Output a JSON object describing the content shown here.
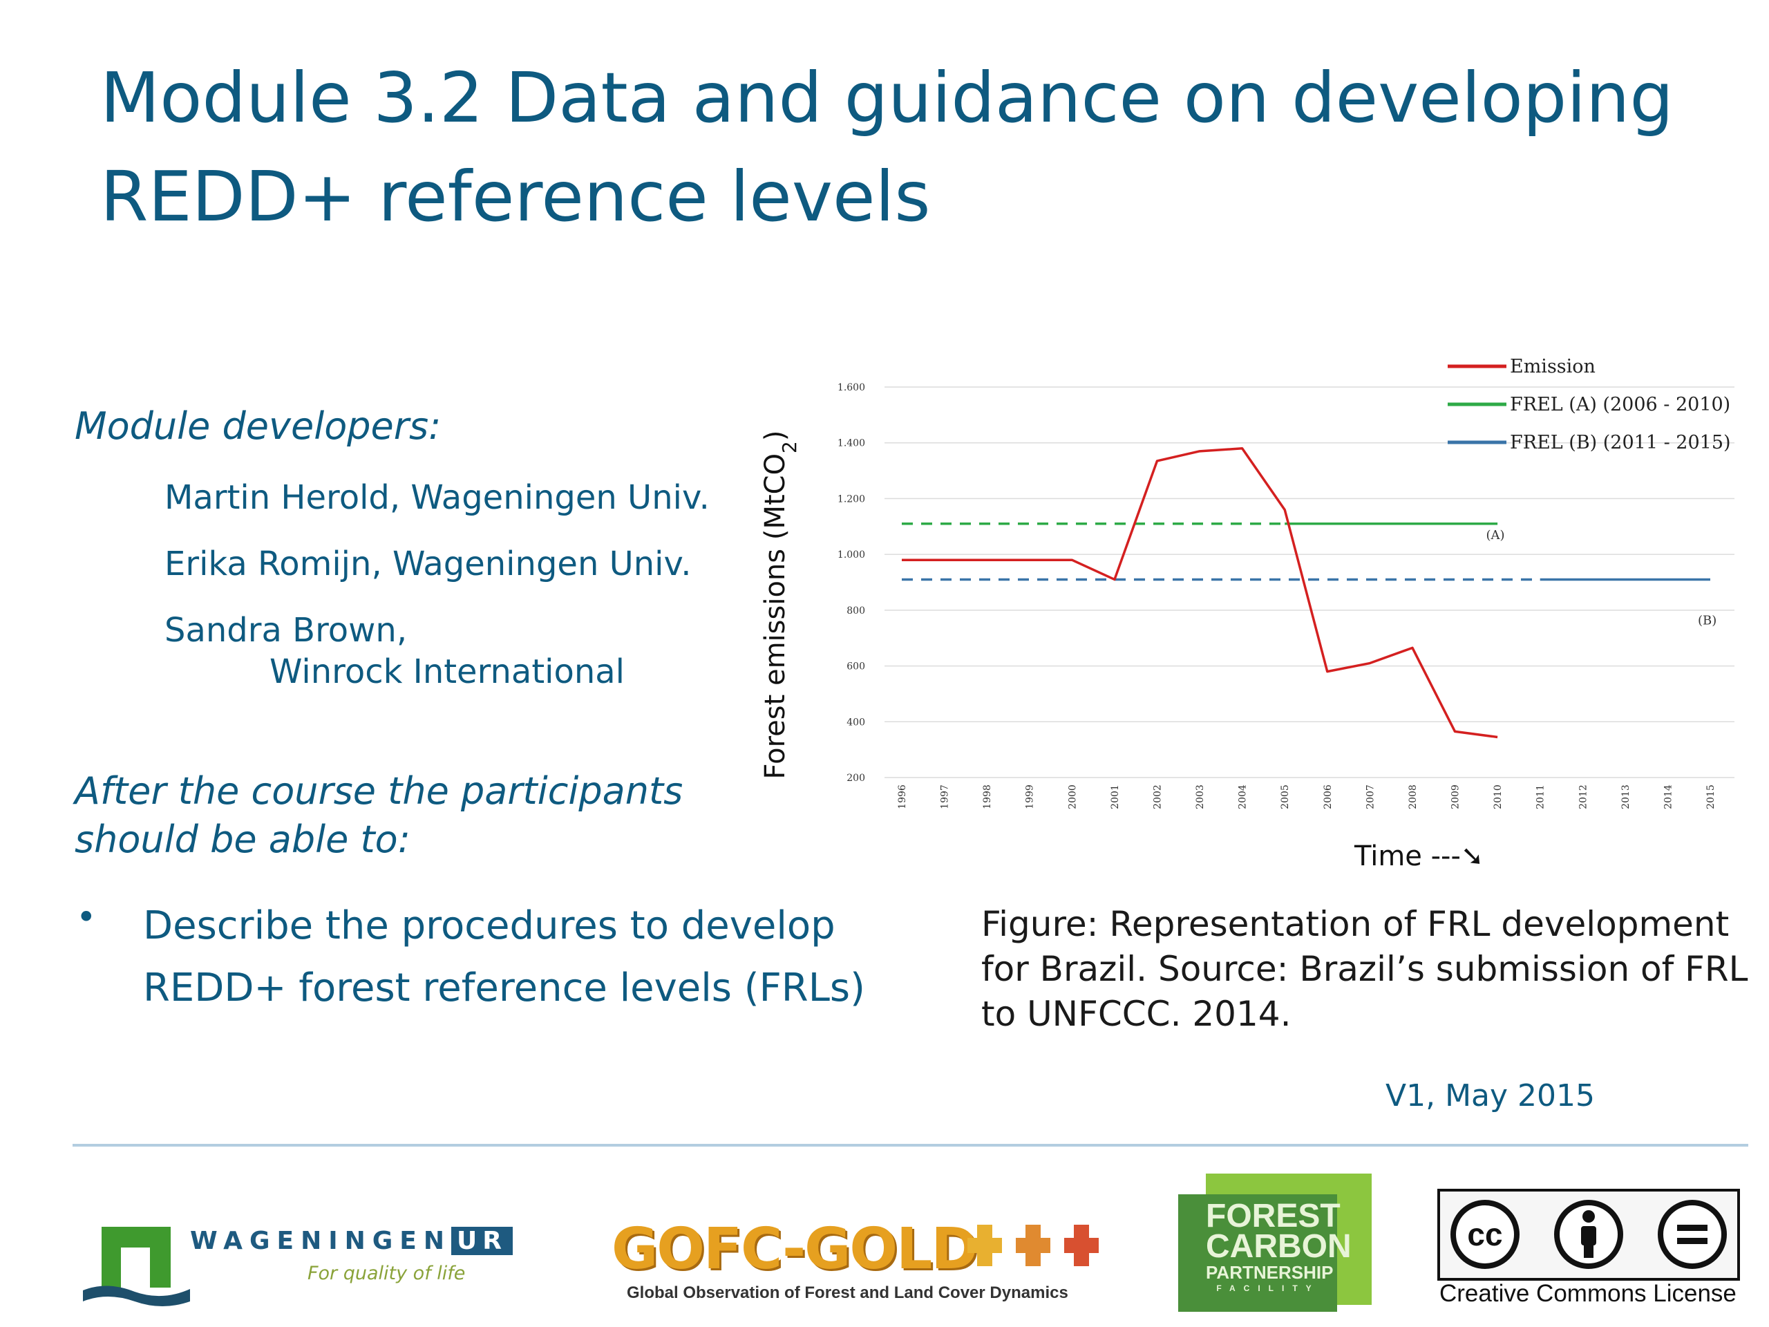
{
  "title": "Module 3.2 Data and guidance on developing REDD+ reference levels",
  "developers": {
    "heading": "Module developers:",
    "names": [
      "Martin Herold, Wageningen Univ.",
      "Erika Romijn, Wageningen Univ.",
      "Sandra Brown,"
    ],
    "org_continuation": "Winrock International"
  },
  "objectives": {
    "heading": "After the course the participants should be able to:",
    "bullets": [
      "Describe the procedures to develop REDD+ forest reference levels (FRLs)"
    ]
  },
  "caption": "Figure: Representation of FRL development for Brazil. Source: Brazil’s submission of FRL to UNFCCC. 2014.",
  "version": "V1, May 2015",
  "chart_data": {
    "type": "line",
    "title": "",
    "xlabel": "Time ---➘",
    "ylabel": "Forest emissions (MtCO2)",
    "ylim": [
      200,
      1600
    ],
    "yticks": [
      "1.600",
      "1.400",
      "1.200",
      "1.000",
      "800",
      "600",
      "400",
      "200"
    ],
    "categories": [
      "1996",
      "1997",
      "1998",
      "1999",
      "2000",
      "2001",
      "2002",
      "2003",
      "2004",
      "2005",
      "2006",
      "2007",
      "2008",
      "2009",
      "2010",
      "2011",
      "2012",
      "2013",
      "2014",
      "2015"
    ],
    "grid": true,
    "legend_position": "top-right",
    "series": [
      {
        "name": "Emission",
        "color": "#d42020",
        "style": "solid",
        "x": [
          "1996",
          "1997",
          "1998",
          "1999",
          "2000",
          "2001",
          "2002",
          "2003",
          "2004",
          "2005",
          "2006",
          "2007",
          "2008",
          "2009",
          "2010"
        ],
        "values": [
          980,
          980,
          980,
          980,
          980,
          910,
          1335,
          1370,
          1380,
          1160,
          580,
          610,
          665,
          365,
          345
        ]
      },
      {
        "name": "FREL (A) (2006 - 2010)",
        "color": "#2eaa47",
        "dashed_until": "2005",
        "solid_from": "2005",
        "x": [
          "1996",
          "2010"
        ],
        "values": [
          1110,
          1110
        ]
      },
      {
        "name": "FREL  (B) (2011 - 2015)",
        "color": "#3a74a8",
        "dashed_until": "2011",
        "solid_from": "2011",
        "x": [
          "1996",
          "2015"
        ],
        "values": [
          910,
          910
        ]
      }
    ],
    "annotations": [
      "(A)",
      "(B)"
    ]
  },
  "logos": {
    "wageningen": {
      "name_left": "WAGENINGEN",
      "name_right": "UR",
      "tagline": "For quality of life",
      "color": "#1e5a80",
      "tagline_color": "#8aa33a"
    },
    "gofc": {
      "name": "GOFC-GOLD",
      "tagline": "Global Observation of Forest and Land Cover Dynamics",
      "color": "#e6a020"
    },
    "fcpf": {
      "lines": [
        "FOREST",
        "CARBON",
        "PARTNERSHIP",
        "FACILITY"
      ],
      "color_light": "#8cc63f",
      "color_dark": "#4a8f3a"
    },
    "cc": {
      "label": "Creative Commons License",
      "badges": [
        "cc-icon",
        "by-icon",
        "nd-icon"
      ]
    }
  }
}
